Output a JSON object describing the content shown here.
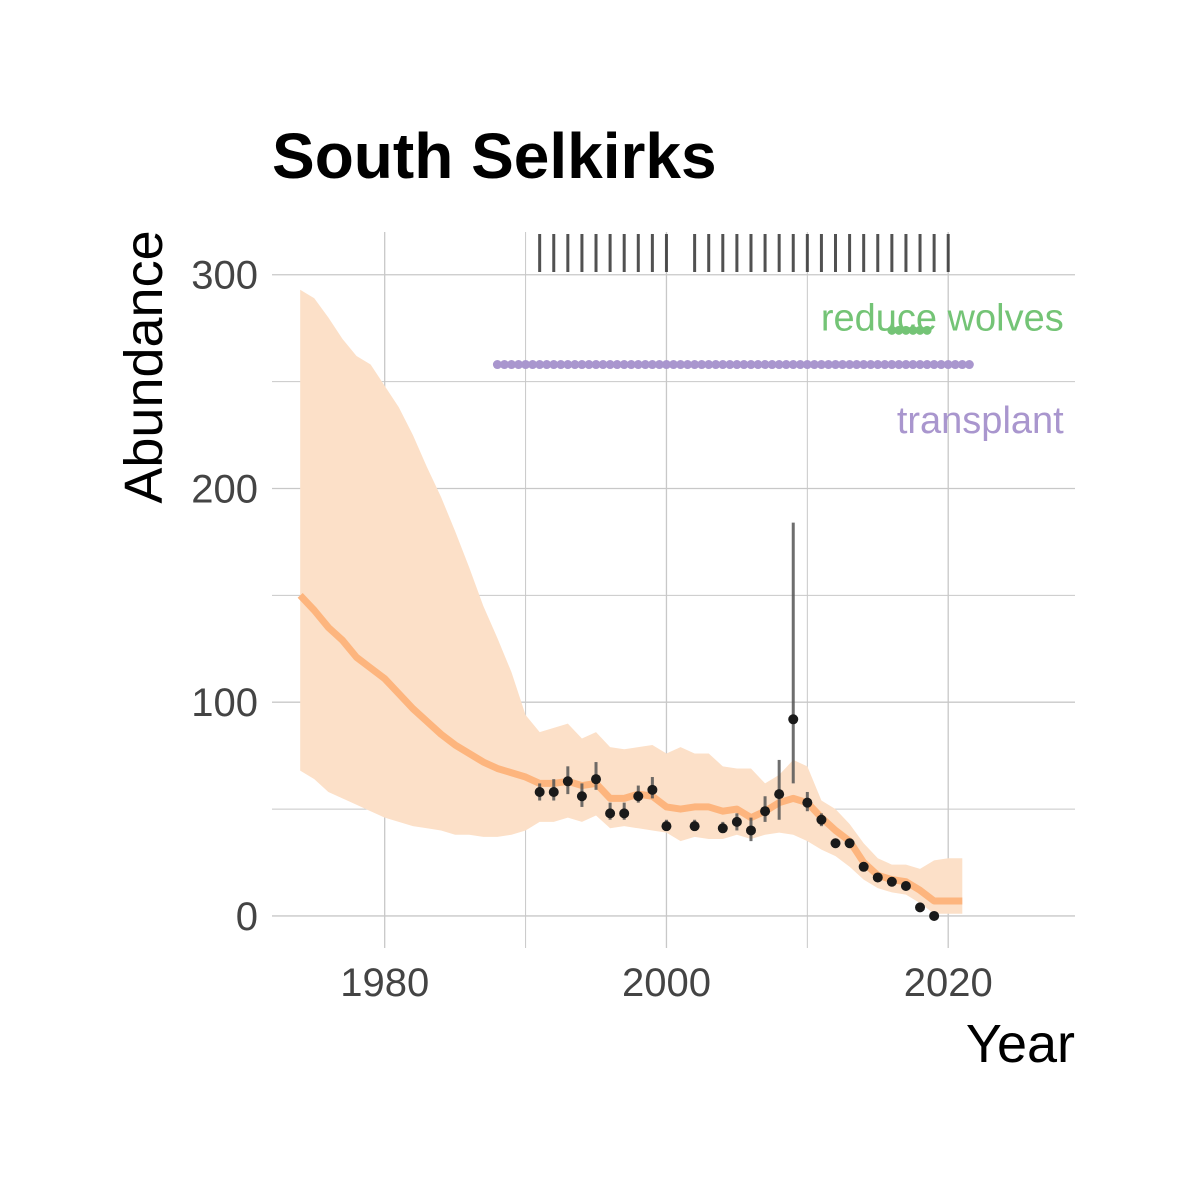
{
  "chart_data": {
    "type": "line",
    "title": "South Selkirks",
    "xlabel": "Year",
    "ylabel": "Abundance",
    "xlim": [
      1972,
      2029
    ],
    "ylim": [
      -15,
      320
    ],
    "x_ticks": [
      1980,
      2000,
      2020
    ],
    "y_ticks": [
      0,
      100,
      200,
      300
    ],
    "grid": true,
    "colors": {
      "trend": "#FDB57E",
      "ribbon": "#FCE0C8",
      "points": "#1a1a1a",
      "reduce_wolves": "#74C476",
      "transplant": "#A996CE",
      "grid": "#C8C8C8",
      "rug": "#333333"
    },
    "trend": {
      "x": [
        1974,
        1975,
        1976,
        1977,
        1978,
        1979,
        1980,
        1981,
        1982,
        1983,
        1984,
        1985,
        1986,
        1987,
        1988,
        1989,
        1990,
        1991,
        1992,
        1993,
        1994,
        1995,
        1996,
        1997,
        1998,
        1999,
        2000,
        2001,
        2002,
        2003,
        2004,
        2005,
        2006,
        2007,
        2008,
        2009,
        2010,
        2011,
        2012,
        2013,
        2014,
        2015,
        2016,
        2017,
        2018,
        2019,
        2020,
        2021
      ],
      "mean": [
        150,
        143,
        135,
        129,
        121,
        116,
        111,
        104,
        97,
        91,
        85,
        80,
        76,
        72,
        69,
        67,
        65,
        62,
        62,
        63,
        61,
        62,
        55,
        55,
        57,
        56,
        51,
        50,
        51,
        51,
        49,
        50,
        46,
        49,
        53,
        55,
        53,
        46,
        40,
        35,
        25,
        19,
        17,
        16,
        12,
        7,
        7,
        7
      ],
      "lower": [
        68,
        64,
        58,
        55,
        52,
        49,
        46,
        44,
        42,
        41,
        40,
        38,
        38,
        37,
        37,
        38,
        40,
        44,
        44,
        46,
        44,
        47,
        41,
        42,
        41,
        40,
        39,
        35,
        37,
        36,
        36,
        38,
        36,
        38,
        39,
        38,
        35,
        31,
        28,
        23,
        17,
        13,
        11,
        10,
        6,
        1,
        1,
        1
      ],
      "upper": [
        293,
        289,
        280,
        270,
        262,
        258,
        248,
        238,
        225,
        210,
        196,
        180,
        163,
        145,
        130,
        114,
        94,
        86,
        88,
        90,
        83,
        86,
        79,
        78,
        79,
        80,
        76,
        79,
        76,
        76,
        70,
        69,
        69,
        62,
        66,
        73,
        70,
        54,
        50,
        43,
        34,
        27,
        24,
        24,
        22,
        26,
        27,
        27
      ]
    },
    "estimates": {
      "x": [
        1991,
        1992,
        1993,
        1994,
        1995,
        1996,
        1997,
        1998,
        1999,
        2000,
        2002,
        2004,
        2005,
        2006,
        2007,
        2008,
        2009,
        2010,
        2011,
        2012,
        2013,
        2014,
        2015,
        2016,
        2017,
        2018,
        2019
      ],
      "y": [
        58,
        58,
        63,
        56,
        64,
        48,
        48,
        56,
        59,
        42,
        42,
        41,
        44,
        40,
        49,
        57,
        92,
        53,
        45,
        34,
        34,
        23,
        18,
        16,
        14,
        4,
        0
      ],
      "lower": [
        54,
        54,
        57,
        51,
        59,
        45,
        45,
        53,
        55,
        40,
        40,
        39,
        40,
        35,
        44,
        45,
        62,
        49,
        42,
        32,
        32,
        22,
        17,
        15,
        13,
        3,
        0
      ],
      "upper": [
        62,
        64,
        70,
        62,
        72,
        53,
        53,
        61,
        65,
        45,
        45,
        44,
        48,
        46,
        56,
        73,
        184,
        58,
        48,
        36,
        36,
        24,
        19,
        17,
        15,
        5,
        0
      ]
    },
    "survey_rug_years": [
      1991,
      1992,
      1993,
      1994,
      1995,
      1996,
      1997,
      1998,
      1999,
      2000,
      2002,
      2003,
      2004,
      2005,
      2006,
      2007,
      2008,
      2009,
      2010,
      2011,
      2012,
      2013,
      2014,
      2015,
      2016,
      2017,
      2018,
      2019,
      2020
    ],
    "treatments": [
      {
        "label": "reduce wolves",
        "years": [
          2016,
          2017,
          2018
        ],
        "level": 274,
        "label_x": 2028.2,
        "label_y": 280
      },
      {
        "label": "transplant",
        "years": [
          1988,
          1989,
          1990,
          1991,
          1992,
          1993,
          1994,
          1995,
          1996,
          1997,
          1998,
          1999,
          2000,
          2001,
          2002,
          2003,
          2004,
          2005,
          2006,
          2007,
          2008,
          2009,
          2010,
          2011,
          2012,
          2013,
          2014,
          2015,
          2016,
          2017,
          2018,
          2019,
          2020,
          2021
        ],
        "level": 258,
        "label_x": 2028.2,
        "label_y": 232
      }
    ]
  }
}
